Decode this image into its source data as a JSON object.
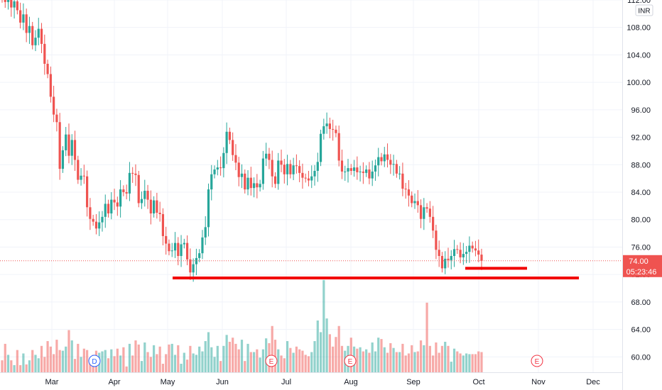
{
  "chart_data": {
    "type": "candlestick",
    "currency": "INR",
    "price_axis": {
      "ticks": [
        "112.00",
        "108.00",
        "104.00",
        "100.00",
        "96.00",
        "92.00",
        "88.00",
        "84.00",
        "80.00",
        "76.00",
        "72.00",
        "68.00",
        "64.00",
        "60.00"
      ],
      "ylim": [
        58.2,
        113.2
      ]
    },
    "time_axis": {
      "ticks": [
        "Mar",
        "Apr",
        "May",
        "Jun",
        "Jul",
        "Aug",
        "Sep",
        "Oct",
        "Nov",
        "Dec"
      ]
    },
    "last_price": "74.00",
    "countdown": "05:23:46",
    "support_levels": [
      {
        "price": 71.5,
        "from": "May",
        "to": "Nov"
      },
      {
        "price": 72.9,
        "from": "Sep",
        "to": "Oct"
      }
    ],
    "event_markers": [
      {
        "label": "D",
        "near": "Apr",
        "color": "#2962ff"
      },
      {
        "label": "E",
        "near": "Jul",
        "color": "#f23645"
      },
      {
        "label": "E",
        "near": "Aug",
        "color": "#f23645"
      },
      {
        "label": "E",
        "near": "Nov",
        "color": "#f23645"
      }
    ],
    "closes": [
      112.2,
      111.7,
      112.4,
      110.9,
      111.8,
      110.5,
      108.7,
      109.9,
      107.2,
      108.2,
      105.4,
      106.5,
      107.8,
      105.6,
      102.7,
      101.2,
      97.9,
      95.3,
      94.2,
      87.4,
      90.1,
      92.4,
      89.3,
      91.6,
      88.7,
      85.8,
      86.4,
      86.3,
      81.8,
      80.1,
      79.7,
      78.7,
      79.6,
      80.4,
      82.3,
      80.9,
      82.9,
      82.5,
      81.9,
      84.4,
      84.0,
      83.8,
      86.8,
      86.7,
      86.5,
      82.4,
      83.0,
      84.2,
      82.9,
      80.9,
      82.8,
      81.0,
      80.8,
      77.6,
      76.5,
      75.4,
      75.5,
      76.6,
      74.7,
      76.4,
      76.6,
      74.2,
      72.3,
      73.5,
      74.4,
      75.1,
      77.4,
      78.9,
      84.4,
      86.6,
      87.3,
      87.6,
      87.5,
      89.7,
      92.8,
      91.6,
      89.4,
      88.3,
      86.2,
      86.7,
      84.4,
      86.1,
      84.6,
      85.3,
      84.7,
      85.2,
      88.9,
      89.6,
      88.7,
      86.3,
      85.2,
      88.6,
      88.0,
      86.6,
      88.1,
      86.6,
      87.9,
      87.8,
      86.8,
      86.1,
      86.0,
      85.7,
      86.3,
      87.1,
      88.4,
      92.5,
      93.6,
      94.0,
      93.2,
      93.1,
      92.6,
      88.6,
      87.0,
      87.0,
      87.5,
      87.1,
      87.6,
      86.9,
      87.0,
      86.8,
      87.3,
      86.0,
      87.0,
      87.9,
      89.1,
      88.5,
      89.5,
      88.7,
      88.0,
      88.1,
      86.7,
      86.7,
      84.5,
      84.4,
      83.5,
      82.4,
      82.7,
      82.1,
      80.1,
      81.8,
      81.6,
      80.4,
      78.4,
      75.6,
      74.7,
      72.9,
      74.3,
      74.1,
      74.7,
      75.7,
      75.6,
      74.5,
      75.0,
      75.3,
      76.2,
      75.8,
      75.5,
      74.9,
      74.0
    ],
    "volumes": [
      59.5,
      61.9,
      60.3,
      59.5,
      58.8,
      61.0,
      58.8,
      60.5,
      58.9,
      59.5,
      61.0,
      60.3,
      59.8,
      61.6,
      60.0,
      62.3,
      61.5,
      60.4,
      62.5,
      61.0,
      60.9,
      61.5,
      63.9,
      62.4,
      59.7,
      61.9,
      60.0,
      61.2,
      61.0,
      59.8,
      60.3,
      60.9,
      60.6,
      60.8,
      61.0,
      59.8,
      61.1,
      60.1,
      61.2,
      60.2,
      61.4,
      58.6,
      61.9,
      60.2,
      62.4,
      61.8,
      59.4,
      62.1,
      60.7,
      60.0,
      61.7,
      60.4,
      61.5,
      59.0,
      60.4,
      61.8,
      61.9,
      60.3,
      61.7,
      59.0,
      60.6,
      59.6,
      61.6,
      60.5,
      60.3,
      61.5,
      60.8,
      62.3,
      63.6,
      61.4,
      60.0,
      61.6,
      59.4,
      61.6,
      63.2,
      62.2,
      62.8,
      61.9,
      61.1,
      62.5,
      59.4,
      61.9,
      60.7,
      60.7,
      61.1,
      59.9,
      61.1,
      62.7,
      62.0,
      64.5,
      62.5,
      61.1,
      60.2,
      59.8,
      62.3,
      61.3,
      60.6,
      61.5,
      61.1,
      60.9,
      60.3,
      60.1,
      60.7,
      62.3,
      65.3,
      63.6,
      71.2,
      65.6,
      63.3,
      61.5,
      62.9,
      64.5,
      61.6,
      60.9,
      61.6,
      62.8,
      61.5,
      61.2,
      61.4,
      60.8,
      61.1,
      60.6,
      62.1,
      60.8,
      62.8,
      62.6,
      61.4,
      60.6,
      62.0,
      61.3,
      60.7,
      60.7,
      61.9,
      60.2,
      60.5,
      61.7,
      60.7,
      60.8,
      62.4,
      61.7,
      67.9,
      61.6,
      60.2,
      62.1,
      60.6,
      61.6,
      62.2,
      61.6,
      59.3,
      61.2,
      60.8,
      60.5,
      60.2,
      60.5,
      60.4,
      60.4,
      60.4,
      60.8,
      60.7,
      60.9,
      60.4,
      61.1,
      60.4
    ]
  }
}
